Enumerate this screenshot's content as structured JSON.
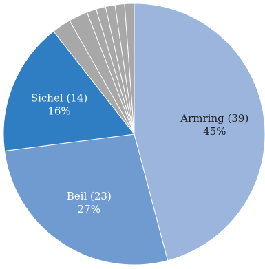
{
  "chart_data": {
    "type": "pie",
    "title": "",
    "start_angle_deg": 0,
    "direction": "clockwise",
    "slices": [
      {
        "label": "Armring (39)",
        "value": 39,
        "percent_label": "45%",
        "color": "#9bb5dc",
        "text_color": "#1f1f1f"
      },
      {
        "label": "Beil (23)",
        "value": 23,
        "percent_label": "27%",
        "color": "#6f9bd1",
        "text_color": "#ffffff"
      },
      {
        "label": "Sichel (14)",
        "value": 14,
        "percent_label": "16%",
        "color": "#2f7dc2",
        "text_color": "#ffffff"
      },
      {
        "label": "",
        "value": 2,
        "percent_label": "",
        "color": "#a8a8a8",
        "text_color": "#ffffff"
      },
      {
        "label": "",
        "value": 2,
        "percent_label": "",
        "color": "#a8a8a8",
        "text_color": "#ffffff"
      },
      {
        "label": "",
        "value": 1,
        "percent_label": "",
        "color": "#a8a8a8",
        "text_color": "#ffffff"
      },
      {
        "label": "",
        "value": 1,
        "percent_label": "",
        "color": "#a8a8a8",
        "text_color": "#ffffff"
      },
      {
        "label": "",
        "value": 1,
        "percent_label": "",
        "color": "#a8a8a8",
        "text_color": "#ffffff"
      },
      {
        "label": "",
        "value": 1,
        "percent_label": "",
        "color": "#a8a8a8",
        "text_color": "#ffffff"
      },
      {
        "label": "",
        "value": 1,
        "percent_label": "",
        "color": "#a8a8a8",
        "text_color": "#ffffff"
      }
    ]
  }
}
